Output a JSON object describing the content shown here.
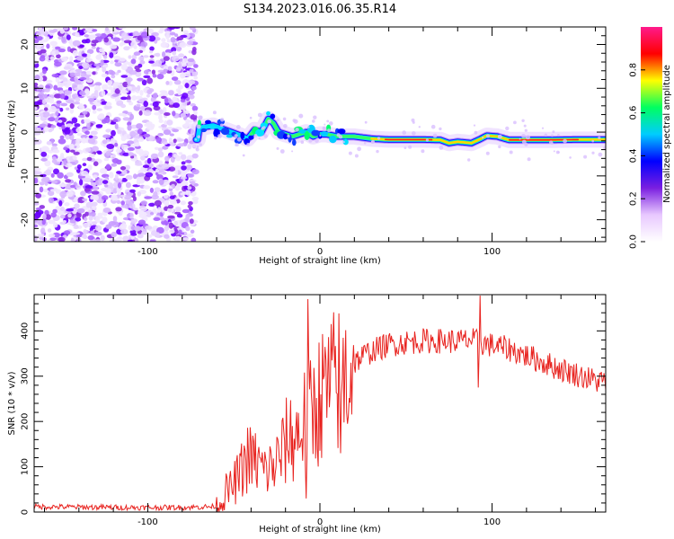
{
  "title": "S134.2023.016.06.35.R14",
  "chart_data": [
    {
      "type": "heatmap",
      "xlabel": "Height of straight line (km)",
      "ylabel": "Frequency (Hz)",
      "xlim": [
        -166,
        166
      ],
      "ylim": [
        -25,
        24
      ],
      "xticks": [
        "-100",
        "0",
        "100"
      ],
      "yticks": [
        "20",
        "10",
        "0",
        "-10",
        "-20"
      ],
      "colorbar": {
        "label": "Normalized spectral amplitude",
        "range": [
          0,
          1
        ],
        "ticks": [
          "0.0",
          "0.2",
          "0.4",
          "0.6",
          "0.8"
        ],
        "colors": [
          "#ffffff",
          "#e8c8ff",
          "#7a1fe0",
          "#0000ff",
          "#00ccff",
          "#00ff60",
          "#ffff00",
          "#ff0000",
          "#ff1a8c"
        ]
      },
      "noise_region": {
        "x": [
          -166,
          -72
        ],
        "y": [
          -25,
          24
        ]
      },
      "ridge": [
        [
          -70,
          1.0
        ],
        [
          -62,
          1.5
        ],
        [
          -55,
          0.5
        ],
        [
          -48,
          -0.5
        ],
        [
          -42,
          -1.5
        ],
        [
          -38,
          0.5
        ],
        [
          -34,
          0.0
        ],
        [
          -30,
          3.0
        ],
        [
          -27,
          2.0
        ],
        [
          -24,
          0.0
        ],
        [
          -20,
          -0.5
        ],
        [
          -16,
          -1.0
        ],
        [
          -12,
          -0.5
        ],
        [
          -8,
          0.0
        ],
        [
          -4,
          -1.0
        ],
        [
          0,
          -0.5
        ],
        [
          4,
          -0.5
        ],
        [
          10,
          -1.0
        ],
        [
          20,
          -1.0
        ],
        [
          30,
          -1.5
        ],
        [
          40,
          -1.7
        ],
        [
          60,
          -1.7
        ],
        [
          70,
          -1.8
        ],
        [
          75,
          -2.5
        ],
        [
          80,
          -2.2
        ],
        [
          88,
          -2.5
        ],
        [
          92,
          -1.8
        ],
        [
          97,
          -0.8
        ],
        [
          103,
          -1.0
        ],
        [
          110,
          -1.8
        ],
        [
          130,
          -1.8
        ],
        [
          150,
          -1.7
        ],
        [
          166,
          -1.7
        ]
      ]
    },
    {
      "type": "line",
      "xlabel": "Height of straight line (km)",
      "ylabel": "SNR (10 * v/v)",
      "xlim": [
        -166,
        166
      ],
      "ylim": [
        0,
        480
      ],
      "xticks": [
        "-100",
        "0",
        "100"
      ],
      "yticks": [
        "0",
        "100",
        "200",
        "300",
        "400"
      ],
      "line_color": "#e8231f",
      "series": [
        {
          "x": [
            -166,
            -140,
            -110,
            -80,
            -62,
            -57,
            -55,
            -52,
            -47,
            -42,
            -37,
            -32,
            -27,
            -22,
            -18,
            -15,
            -12,
            -9,
            -6,
            -3,
            0,
            5,
            10,
            15,
            20,
            25,
            30,
            40,
            50,
            60,
            70,
            80,
            88,
            92,
            95,
            100,
            110,
            120,
            130,
            140,
            150,
            160,
            166
          ],
          "y": [
            12,
            11,
            10,
            10,
            12,
            20,
            45,
            50,
            80,
            120,
            110,
            90,
            100,
            130,
            170,
            160,
            180,
            200,
            220,
            230,
            255,
            270,
            290,
            300,
            330,
            345,
            355,
            370,
            375,
            378,
            378,
            377,
            380,
            375,
            372,
            368,
            360,
            345,
            330,
            315,
            303,
            290,
            288
          ]
        }
      ],
      "annotations": [
        {
          "x": -7,
          "y": 470
        },
        {
          "x": 93,
          "y": 478
        },
        {
          "x": 92,
          "y": 275
        },
        {
          "x": -8,
          "y": 30
        },
        {
          "x": 12,
          "y": 130
        }
      ]
    }
  ]
}
